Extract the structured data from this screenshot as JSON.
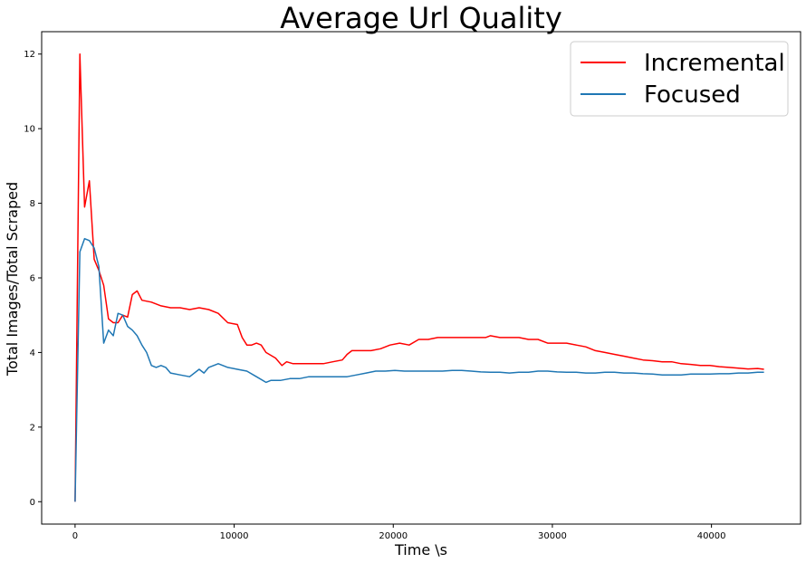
{
  "chart_data": {
    "type": "line",
    "title": "Average Url Quality",
    "xlabel": "Time \\s",
    "ylabel": "Total Images/Total Scraped",
    "xlim": [
      -2100,
      45600
    ],
    "ylim": [
      -0.6,
      12.6
    ],
    "xticks": [
      0,
      10000,
      20000,
      30000,
      40000
    ],
    "yticks": [
      0,
      2,
      4,
      6,
      8,
      10,
      12
    ],
    "grid": false,
    "legend_position": "top-right",
    "series": [
      {
        "name": "Incremental",
        "color": "#ff0000",
        "points": [
          [
            0,
            0
          ],
          [
            300,
            12.0
          ],
          [
            600,
            7.9
          ],
          [
            900,
            8.6
          ],
          [
            1200,
            6.5
          ],
          [
            1500,
            6.2
          ],
          [
            1800,
            5.8
          ],
          [
            2100,
            4.9
          ],
          [
            2400,
            4.8
          ],
          [
            2700,
            4.8
          ],
          [
            3000,
            5.0
          ],
          [
            3300,
            4.95
          ],
          [
            3600,
            5.55
          ],
          [
            3900,
            5.65
          ],
          [
            4200,
            5.4
          ],
          [
            4800,
            5.35
          ],
          [
            5400,
            5.25
          ],
          [
            6000,
            5.2
          ],
          [
            6600,
            5.2
          ],
          [
            7200,
            5.15
          ],
          [
            7800,
            5.2
          ],
          [
            8400,
            5.15
          ],
          [
            9000,
            5.05
          ],
          [
            9600,
            4.8
          ],
          [
            10200,
            4.75
          ],
          [
            10500,
            4.4
          ],
          [
            10800,
            4.2
          ],
          [
            11100,
            4.2
          ],
          [
            11400,
            4.25
          ],
          [
            11700,
            4.2
          ],
          [
            12000,
            4.0
          ],
          [
            12600,
            3.85
          ],
          [
            13000,
            3.65
          ],
          [
            13300,
            3.75
          ],
          [
            13700,
            3.7
          ],
          [
            14300,
            3.7
          ],
          [
            15000,
            3.7
          ],
          [
            15600,
            3.7
          ],
          [
            16200,
            3.75
          ],
          [
            16800,
            3.8
          ],
          [
            17100,
            3.95
          ],
          [
            17400,
            4.05
          ],
          [
            18000,
            4.05
          ],
          [
            18600,
            4.05
          ],
          [
            19200,
            4.1
          ],
          [
            19800,
            4.2
          ],
          [
            20400,
            4.25
          ],
          [
            21000,
            4.2
          ],
          [
            21600,
            4.35
          ],
          [
            22200,
            4.35
          ],
          [
            22800,
            4.4
          ],
          [
            23400,
            4.4
          ],
          [
            24000,
            4.4
          ],
          [
            24600,
            4.4
          ],
          [
            25200,
            4.4
          ],
          [
            25800,
            4.4
          ],
          [
            26100,
            4.45
          ],
          [
            26700,
            4.4
          ],
          [
            27300,
            4.4
          ],
          [
            27900,
            4.4
          ],
          [
            28500,
            4.35
          ],
          [
            29100,
            4.35
          ],
          [
            29700,
            4.25
          ],
          [
            30300,
            4.25
          ],
          [
            30900,
            4.25
          ],
          [
            31500,
            4.2
          ],
          [
            32100,
            4.15
          ],
          [
            32700,
            4.05
          ],
          [
            33300,
            4.0
          ],
          [
            33900,
            3.95
          ],
          [
            34500,
            3.9
          ],
          [
            35100,
            3.85
          ],
          [
            35700,
            3.8
          ],
          [
            36300,
            3.78
          ],
          [
            36900,
            3.75
          ],
          [
            37500,
            3.75
          ],
          [
            38100,
            3.7
          ],
          [
            38700,
            3.68
          ],
          [
            39300,
            3.65
          ],
          [
            39900,
            3.65
          ],
          [
            40500,
            3.62
          ],
          [
            41100,
            3.6
          ],
          [
            41700,
            3.58
          ],
          [
            42300,
            3.56
          ],
          [
            42900,
            3.57
          ],
          [
            43300,
            3.55
          ]
        ]
      },
      {
        "name": "Focused",
        "color": "#1f77b4",
        "points": [
          [
            0,
            0
          ],
          [
            300,
            6.7
          ],
          [
            600,
            7.05
          ],
          [
            900,
            7.0
          ],
          [
            1200,
            6.8
          ],
          [
            1500,
            6.3
          ],
          [
            1800,
            4.25
          ],
          [
            2100,
            4.6
          ],
          [
            2400,
            4.45
          ],
          [
            2700,
            5.05
          ],
          [
            3000,
            5.0
          ],
          [
            3300,
            4.7
          ],
          [
            3600,
            4.6
          ],
          [
            3900,
            4.45
          ],
          [
            4200,
            4.2
          ],
          [
            4500,
            4.0
          ],
          [
            4800,
            3.65
          ],
          [
            5100,
            3.6
          ],
          [
            5400,
            3.65
          ],
          [
            5700,
            3.6
          ],
          [
            6000,
            3.45
          ],
          [
            6600,
            3.4
          ],
          [
            7200,
            3.35
          ],
          [
            7800,
            3.55
          ],
          [
            8100,
            3.45
          ],
          [
            8400,
            3.6
          ],
          [
            9000,
            3.7
          ],
          [
            9600,
            3.6
          ],
          [
            10200,
            3.55
          ],
          [
            10800,
            3.5
          ],
          [
            11400,
            3.35
          ],
          [
            12000,
            3.2
          ],
          [
            12300,
            3.25
          ],
          [
            12900,
            3.25
          ],
          [
            13500,
            3.3
          ],
          [
            14100,
            3.3
          ],
          [
            14700,
            3.35
          ],
          [
            15300,
            3.35
          ],
          [
            15900,
            3.35
          ],
          [
            16500,
            3.35
          ],
          [
            17100,
            3.35
          ],
          [
            17700,
            3.4
          ],
          [
            18300,
            3.45
          ],
          [
            18900,
            3.5
          ],
          [
            19500,
            3.5
          ],
          [
            20100,
            3.52
          ],
          [
            20700,
            3.5
          ],
          [
            21300,
            3.5
          ],
          [
            21900,
            3.5
          ],
          [
            22500,
            3.5
          ],
          [
            23100,
            3.5
          ],
          [
            23700,
            3.52
          ],
          [
            24300,
            3.52
          ],
          [
            24900,
            3.5
          ],
          [
            25500,
            3.48
          ],
          [
            26100,
            3.47
          ],
          [
            26700,
            3.47
          ],
          [
            27300,
            3.45
          ],
          [
            27900,
            3.47
          ],
          [
            28500,
            3.47
          ],
          [
            29100,
            3.5
          ],
          [
            29700,
            3.5
          ],
          [
            30300,
            3.48
          ],
          [
            30900,
            3.47
          ],
          [
            31500,
            3.47
          ],
          [
            32100,
            3.45
          ],
          [
            32700,
            3.45
          ],
          [
            33300,
            3.47
          ],
          [
            33900,
            3.47
          ],
          [
            34500,
            3.45
          ],
          [
            35100,
            3.45
          ],
          [
            35700,
            3.43
          ],
          [
            36300,
            3.42
          ],
          [
            36900,
            3.4
          ],
          [
            37500,
            3.4
          ],
          [
            38100,
            3.4
          ],
          [
            38700,
            3.42
          ],
          [
            39300,
            3.42
          ],
          [
            39900,
            3.42
          ],
          [
            40500,
            3.43
          ],
          [
            41100,
            3.43
          ],
          [
            41700,
            3.45
          ],
          [
            42300,
            3.45
          ],
          [
            42900,
            3.47
          ],
          [
            43300,
            3.47
          ]
        ]
      }
    ]
  }
}
